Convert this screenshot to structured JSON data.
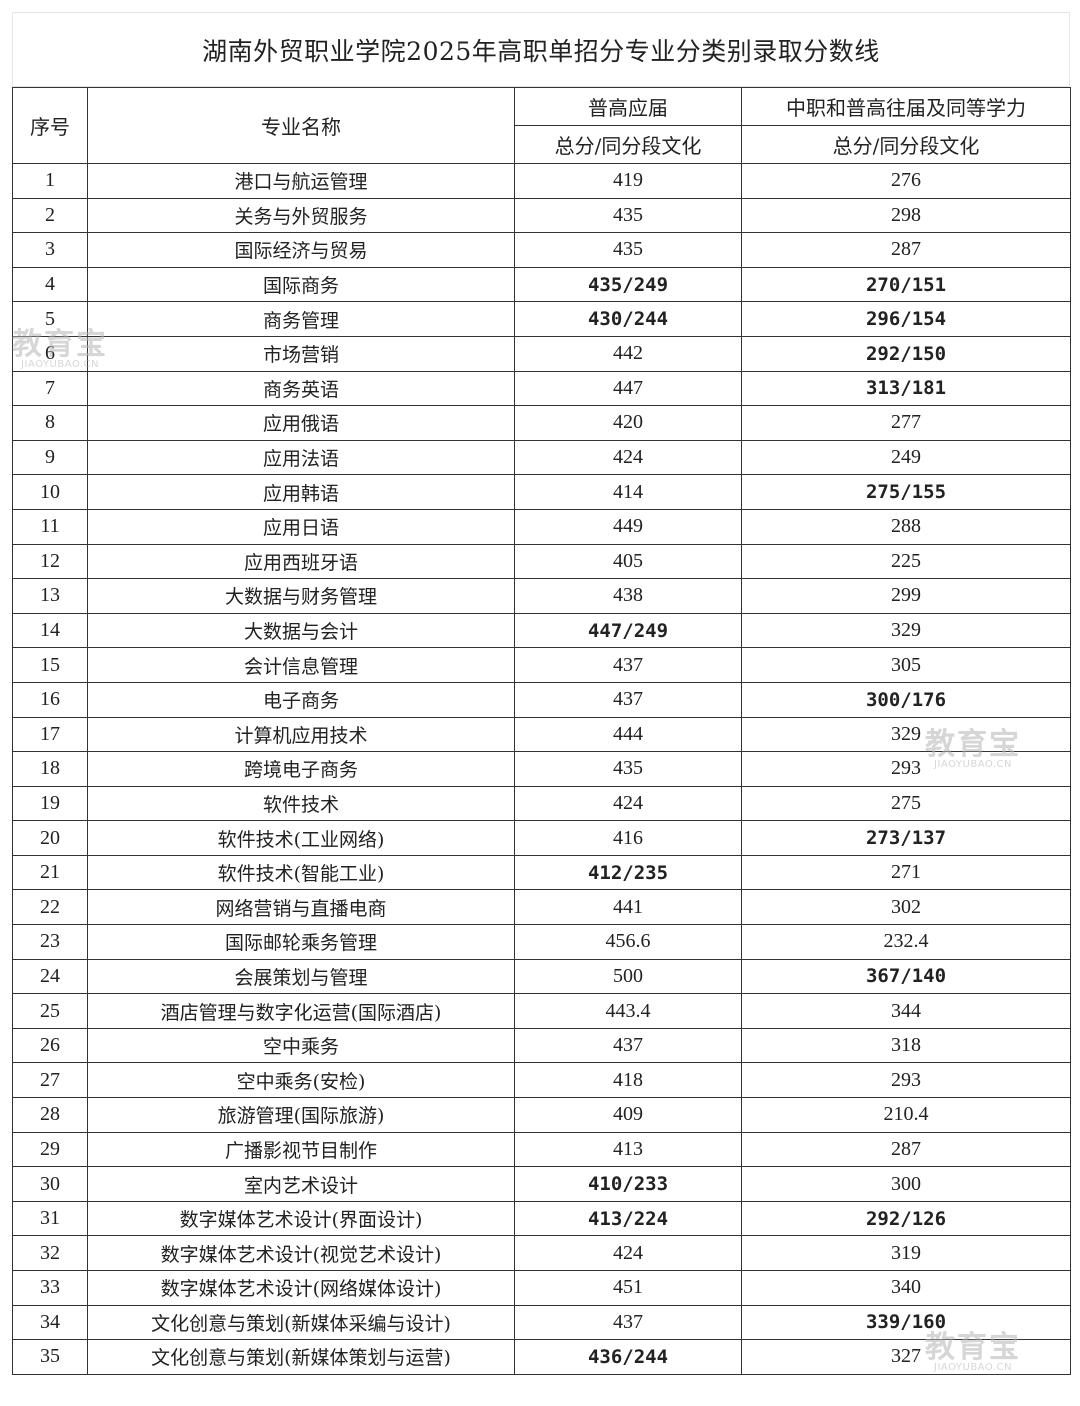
{
  "title": "湖南外贸职业学院2025年高职单招分专业分类别录取分数线",
  "headers": {
    "no": "序号",
    "major": "专业名称",
    "group1": "普高应届",
    "group2": "中职和普高往届及同等学力",
    "sub1": "总分/同分段文化",
    "sub2": "总分/同分段文化"
  },
  "rows": [
    {
      "no": "1",
      "name": "港口与航运管理",
      "a": "419",
      "b": "276",
      "a_bold": false,
      "b_bold": false
    },
    {
      "no": "2",
      "name": "关务与外贸服务",
      "a": "435",
      "b": "298",
      "a_bold": false,
      "b_bold": false
    },
    {
      "no": "3",
      "name": "国际经济与贸易",
      "a": "435",
      "b": "287",
      "a_bold": false,
      "b_bold": false
    },
    {
      "no": "4",
      "name": "国际商务",
      "a": "435/249",
      "b": "270/151",
      "a_bold": true,
      "b_bold": true
    },
    {
      "no": "5",
      "name": "商务管理",
      "a": "430/244",
      "b": "296/154",
      "a_bold": true,
      "b_bold": true
    },
    {
      "no": "6",
      "name": "市场营销",
      "a": "442",
      "b": "292/150",
      "a_bold": false,
      "b_bold": true
    },
    {
      "no": "7",
      "name": "商务英语",
      "a": "447",
      "b": "313/181",
      "a_bold": false,
      "b_bold": true
    },
    {
      "no": "8",
      "name": "应用俄语",
      "a": "420",
      "b": "277",
      "a_bold": false,
      "b_bold": false
    },
    {
      "no": "9",
      "name": "应用法语",
      "a": "424",
      "b": "249",
      "a_bold": false,
      "b_bold": false
    },
    {
      "no": "10",
      "name": "应用韩语",
      "a": "414",
      "b": "275/155",
      "a_bold": false,
      "b_bold": true
    },
    {
      "no": "11",
      "name": "应用日语",
      "a": "449",
      "b": "288",
      "a_bold": false,
      "b_bold": false
    },
    {
      "no": "12",
      "name": "应用西班牙语",
      "a": "405",
      "b": "225",
      "a_bold": false,
      "b_bold": false
    },
    {
      "no": "13",
      "name": "大数据与财务管理",
      "a": "438",
      "b": "299",
      "a_bold": false,
      "b_bold": false
    },
    {
      "no": "14",
      "name": "大数据与会计",
      "a": "447/249",
      "b": "329",
      "a_bold": true,
      "b_bold": false
    },
    {
      "no": "15",
      "name": "会计信息管理",
      "a": "437",
      "b": "305",
      "a_bold": false,
      "b_bold": false
    },
    {
      "no": "16",
      "name": "电子商务",
      "a": "437",
      "b": "300/176",
      "a_bold": false,
      "b_bold": true
    },
    {
      "no": "17",
      "name": "计算机应用技术",
      "a": "444",
      "b": "329",
      "a_bold": false,
      "b_bold": false
    },
    {
      "no": "18",
      "name": "跨境电子商务",
      "a": "435",
      "b": "293",
      "a_bold": false,
      "b_bold": false
    },
    {
      "no": "19",
      "name": "软件技术",
      "a": "424",
      "b": "275",
      "a_bold": false,
      "b_bold": false
    },
    {
      "no": "20",
      "name": "软件技术(工业网络)",
      "a": "416",
      "b": "273/137",
      "a_bold": false,
      "b_bold": true
    },
    {
      "no": "21",
      "name": "软件技术(智能工业)",
      "a": "412/235",
      "b": "271",
      "a_bold": true,
      "b_bold": false
    },
    {
      "no": "22",
      "name": "网络营销与直播电商",
      "a": "441",
      "b": "302",
      "a_bold": false,
      "b_bold": false
    },
    {
      "no": "23",
      "name": "国际邮轮乘务管理",
      "a": "456.6",
      "b": "232.4",
      "a_bold": false,
      "b_bold": false
    },
    {
      "no": "24",
      "name": "会展策划与管理",
      "a": "500",
      "b": "367/140",
      "a_bold": false,
      "b_bold": true
    },
    {
      "no": "25",
      "name": "酒店管理与数字化运营(国际酒店)",
      "a": "443.4",
      "b": "344",
      "a_bold": false,
      "b_bold": false
    },
    {
      "no": "26",
      "name": "空中乘务",
      "a": "437",
      "b": "318",
      "a_bold": false,
      "b_bold": false
    },
    {
      "no": "27",
      "name": "空中乘务(安检)",
      "a": "418",
      "b": "293",
      "a_bold": false,
      "b_bold": false
    },
    {
      "no": "28",
      "name": "旅游管理(国际旅游)",
      "a": "409",
      "b": "210.4",
      "a_bold": false,
      "b_bold": false
    },
    {
      "no": "29",
      "name": "广播影视节目制作",
      "a": "413",
      "b": "287",
      "a_bold": false,
      "b_bold": false
    },
    {
      "no": "30",
      "name": "室内艺术设计",
      "a": "410/233",
      "b": "300",
      "a_bold": true,
      "b_bold": false
    },
    {
      "no": "31",
      "name": "数字媒体艺术设计(界面设计)",
      "a": "413/224",
      "b": "292/126",
      "a_bold": true,
      "b_bold": true
    },
    {
      "no": "32",
      "name": "数字媒体艺术设计(视觉艺术设计)",
      "a": "424",
      "b": "319",
      "a_bold": false,
      "b_bold": false
    },
    {
      "no": "33",
      "name": "数字媒体艺术设计(网络媒体设计)",
      "a": "451",
      "b": "340",
      "a_bold": false,
      "b_bold": false
    },
    {
      "no": "34",
      "name": "文化创意与策划(新媒体采编与设计)",
      "a": "437",
      "b": "339/160",
      "a_bold": false,
      "b_bold": true
    },
    {
      "no": "35",
      "name": "文化创意与策划(新媒体策划与运营)",
      "a": "436/244",
      "b": "327",
      "a_bold": true,
      "b_bold": false
    }
  ],
  "watermark": {
    "brand": "教育宝",
    "domain": "JIAOYUBAO.CN"
  }
}
